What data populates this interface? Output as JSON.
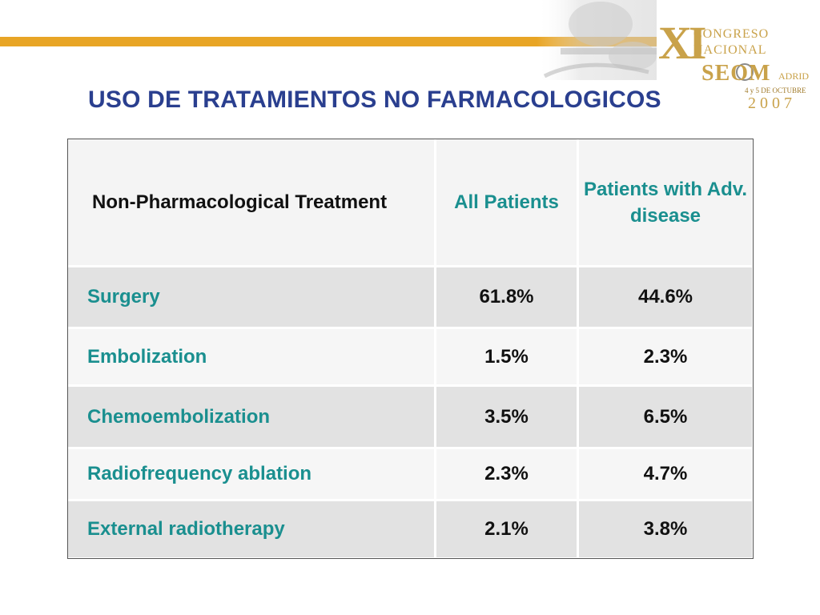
{
  "logo": {
    "numeral": "XI",
    "line1": "CONGRESO",
    "line2": "NACIONAL",
    "seom": "SEOM",
    "city": "ADRID",
    "dates": "4 y 5 DE OCTUBRE",
    "year": "2007"
  },
  "slide": {
    "title": "USO DE TRATAMIENTOS NO FARMACOLOGICOS"
  },
  "table": {
    "headers": [
      "Non-Pharmacological Treatment",
      "All Patients",
      "Patients with Adv. disease"
    ],
    "rows": [
      [
        "Surgery",
        "61.8%",
        "44.6%"
      ],
      [
        "Embolization",
        "1.5%",
        "2.3%"
      ],
      [
        "Chemoembolization",
        "3.5%",
        "6.5%"
      ],
      [
        "Radiofrequency ablation",
        "2.3%",
        "4.7%"
      ],
      [
        "External radiotherapy",
        "2.1%",
        "3.8%"
      ]
    ]
  },
  "colors": {
    "accent_bar": "#e8a525",
    "title": "#2a3f8f",
    "teal_text": "#1a8f8f",
    "logo_gold": "#c9a24a"
  }
}
